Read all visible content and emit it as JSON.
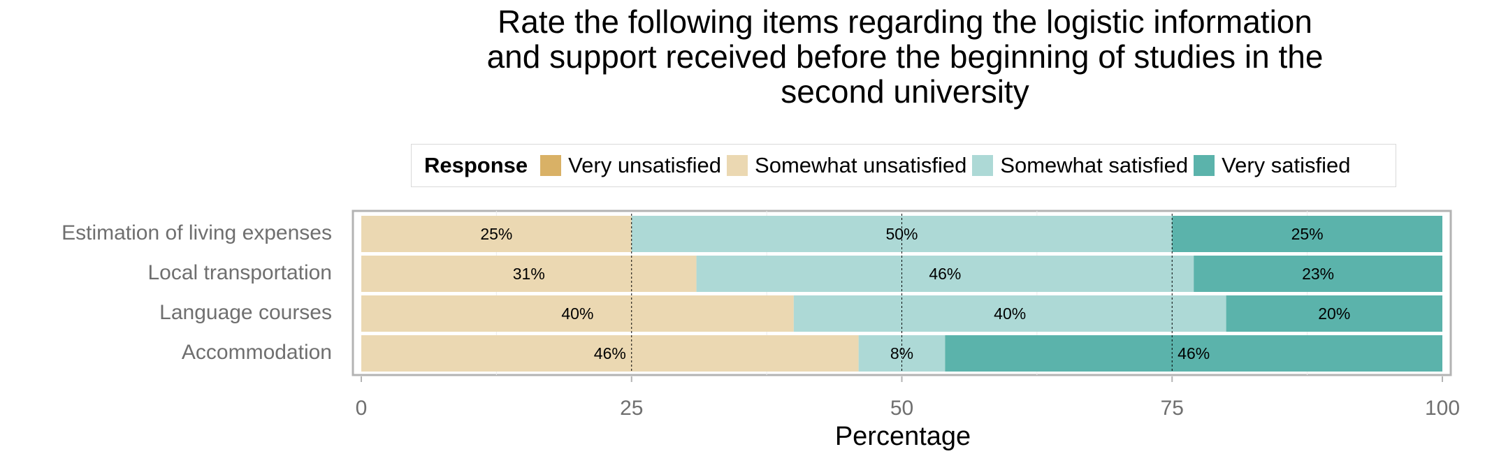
{
  "chart_data": {
    "type": "bar",
    "orientation": "horizontal",
    "stacked": true,
    "title_lines": [
      "Rate the following items regarding the logistic information",
      "and support received before the beginning of studies in the",
      "second university"
    ],
    "xlabel": "Percentage",
    "ylabel": "",
    "xlim": [
      0,
      100
    ],
    "xticks": [
      "0",
      "25",
      "50",
      "75",
      "100"
    ],
    "legend_title": "Response",
    "legend_position": "top",
    "grid": true,
    "categories": [
      "Estimation of living expenses",
      "Local transportation",
      "Language courses",
      "Accommodation"
    ],
    "series": [
      {
        "name": "Very unsatisfied",
        "color": "#D9B166",
        "values": [
          0,
          0,
          0,
          0
        ]
      },
      {
        "name": "Somewhat unsatisfied",
        "color": "#EBD8B2",
        "values": [
          25,
          31,
          40,
          46
        ]
      },
      {
        "name": "Somewhat satisfied",
        "color": "#ADD9D6",
        "values": [
          50,
          46,
          40,
          8
        ]
      },
      {
        "name": "Very satisfied",
        "color": "#5BB3AB",
        "values": [
          25,
          23,
          20,
          46
        ]
      }
    ],
    "data_labels": [
      [
        "25%",
        "50%",
        "25%"
      ],
      [
        "31%",
        "46%",
        "23%"
      ],
      [
        "40%",
        "40%",
        "20%"
      ],
      [
        "46%",
        "8%",
        "46%"
      ]
    ]
  }
}
